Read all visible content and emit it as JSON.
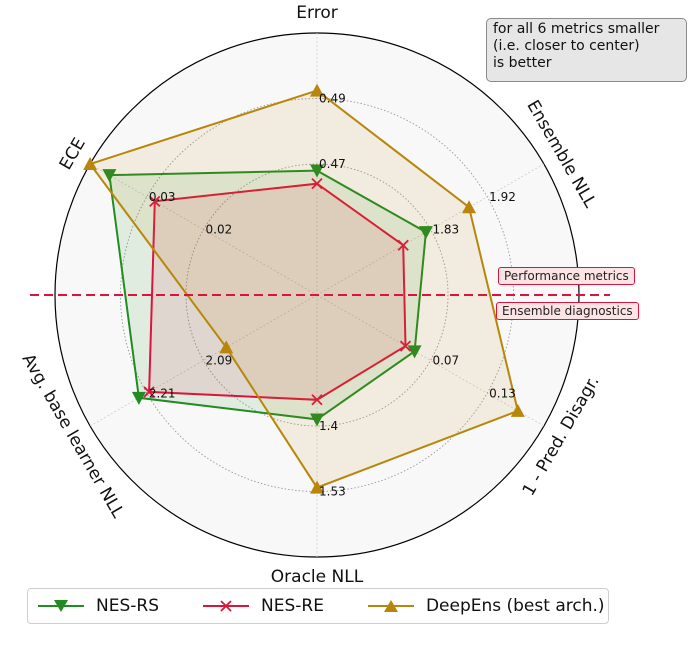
{
  "chart_data": {
    "type": "radar",
    "axes": [
      {
        "label": "Error",
        "ticks": [
          "0.47",
          "0.49"
        ]
      },
      {
        "label": "Ensemble NLL",
        "ticks": [
          "1.83",
          "1.92"
        ]
      },
      {
        "label": "1 - Pred. Disagr.",
        "ticks": [
          "0.07",
          "0.13"
        ]
      },
      {
        "label": "Oracle NLL",
        "ticks": [
          "1.4",
          "1.53"
        ]
      },
      {
        "label": "Avg. base learner NLL",
        "ticks": [
          "2.09",
          "2.21"
        ]
      },
      {
        "label": "ECE",
        "ticks": [
          "0.02",
          "0.03"
        ]
      }
    ],
    "tick_levels": [
      0.5,
      0.75
    ],
    "series": [
      {
        "name": "NES-RS",
        "color": "#228b22",
        "marker": "triangle-down",
        "values": [
          0.475,
          0.48,
          0.43,
          0.475,
          0.785,
          0.915
        ]
      },
      {
        "name": "NES-RE",
        "color": "#dc143c",
        "marker": "x",
        "values": [
          0.425,
          0.38,
          0.39,
          0.4,
          0.74,
          0.715
        ]
      },
      {
        "name": "DeepEns (best arch.)",
        "color": "#b8860b",
        "marker": "triangle-up",
        "values": [
          0.78,
          0.67,
          0.885,
          0.735,
          0.4,
          1.0
        ]
      }
    ],
    "note": "for all 6 metrics smaller\n(i.e. closer to center)\nis better",
    "divider_labels": {
      "upper": "Performance metrics",
      "lower": "Ensemble diagnostics"
    }
  }
}
